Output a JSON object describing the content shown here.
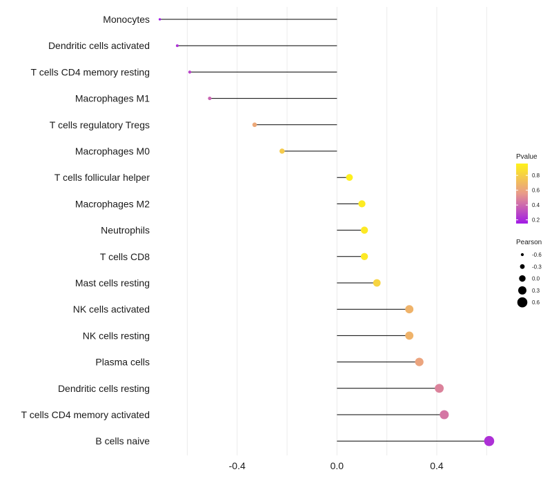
{
  "chart_data": {
    "type": "lollipop",
    "title": "",
    "xlabel": "",
    "ylabel": "",
    "xlim": [
      -0.72,
      0.66
    ],
    "x_ticks": [
      -0.4,
      0.0,
      0.4
    ],
    "x_tick_labels": [
      "-0.4",
      "0.0",
      "0.4"
    ],
    "grid": "vertical",
    "categories": [
      "Monocytes",
      "Dendritic cells activated",
      "T cells CD4 memory resting",
      "Macrophages M1",
      "T cells regulatory  Tregs",
      "Macrophages M0",
      "T cells follicular helper",
      "Macrophages M2",
      "Neutrophils",
      "T cells CD8",
      "Mast cells resting",
      "NK cells activated",
      "NK cells resting",
      "Plasma cells",
      "Dendritic cells resting",
      "T cells CD4 memory activated",
      "B cells naive"
    ],
    "pearson": [
      -0.71,
      -0.64,
      -0.59,
      -0.51,
      -0.33,
      -0.22,
      0.05,
      0.1,
      0.11,
      0.11,
      0.16,
      0.29,
      0.29,
      0.33,
      0.41,
      0.43,
      0.61
    ],
    "pvalue": [
      0.15,
      0.22,
      0.28,
      0.38,
      0.62,
      0.78,
      0.95,
      0.93,
      0.92,
      0.92,
      0.82,
      0.67,
      0.67,
      0.6,
      0.48,
      0.44,
      0.22
    ],
    "color_legend": {
      "title": "Pvalue",
      "ticks": [
        "0.8",
        "0.6",
        "0.4",
        "0.2"
      ],
      "tick_values": [
        0.8,
        0.6,
        0.4,
        0.2
      ],
      "range": [
        0.15,
        0.96
      ],
      "low_color": "#a11ae6",
      "mid_color": "#e89a8a",
      "high_color": "#fff21a"
    },
    "size_legend": {
      "title": "Pearson",
      "labels": [
        "-0.6",
        "-0.3",
        "0.0",
        "0.3",
        "0.6"
      ],
      "values": [
        -0.6,
        -0.3,
        0.0,
        0.3,
        0.6
      ]
    },
    "legend_position": "right"
  }
}
